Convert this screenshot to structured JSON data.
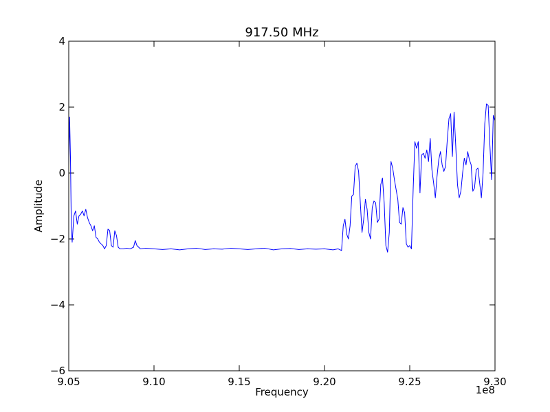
{
  "chart_data": {
    "type": "line",
    "title": "917.50 MHz",
    "xlabel": "Frequency",
    "ylabel": "Amplitude",
    "x_offset_text": "1e8",
    "xlim": [
      9.05,
      9.3
    ],
    "ylim": [
      -6,
      4
    ],
    "x_ticks": [
      9.05,
      9.1,
      9.15,
      9.2,
      9.25,
      9.3
    ],
    "x_tick_labels": [
      "9.05",
      "9.10",
      "9.15",
      "9.20",
      "9.25",
      "9.30"
    ],
    "y_ticks": [
      -6,
      -4,
      -2,
      0,
      2,
      4
    ],
    "y_tick_labels": [
      "−6",
      "−4",
      "−2",
      "0",
      "2",
      "4"
    ],
    "grid": false,
    "series": [
      {
        "color": "#0000ff",
        "points": [
          [
            9.05,
            0.2
          ],
          [
            9.0505,
            1.7
          ],
          [
            9.051,
            0.5
          ],
          [
            9.0515,
            -1.6
          ],
          [
            9.052,
            -2.1
          ],
          [
            9.053,
            -1.3
          ],
          [
            9.054,
            -1.15
          ],
          [
            9.055,
            -1.55
          ],
          [
            9.056,
            -1.3
          ],
          [
            9.057,
            -1.25
          ],
          [
            9.058,
            -1.15
          ],
          [
            9.059,
            -1.3
          ],
          [
            9.06,
            -1.1
          ],
          [
            9.061,
            -1.35
          ],
          [
            9.062,
            -1.5
          ],
          [
            9.063,
            -1.6
          ],
          [
            9.064,
            -1.75
          ],
          [
            9.065,
            -1.6
          ],
          [
            9.066,
            -1.95
          ],
          [
            9.067,
            -2.0
          ],
          [
            9.068,
            -2.1
          ],
          [
            9.069,
            -2.15
          ],
          [
            9.07,
            -2.2
          ],
          [
            9.071,
            -2.3
          ],
          [
            9.072,
            -2.2
          ],
          [
            9.073,
            -1.7
          ],
          [
            9.074,
            -1.75
          ],
          [
            9.075,
            -2.2
          ],
          [
            9.076,
            -2.25
          ],
          [
            9.077,
            -1.75
          ],
          [
            9.078,
            -1.9
          ],
          [
            9.079,
            -2.25
          ],
          [
            9.08,
            -2.3
          ],
          [
            9.082,
            -2.3
          ],
          [
            9.084,
            -2.28
          ],
          [
            9.086,
            -2.3
          ],
          [
            9.088,
            -2.25
          ],
          [
            9.089,
            -2.05
          ],
          [
            9.09,
            -2.2
          ],
          [
            9.092,
            -2.3
          ],
          [
            9.095,
            -2.28
          ],
          [
            9.1,
            -2.3
          ],
          [
            9.105,
            -2.32
          ],
          [
            9.11,
            -2.3
          ],
          [
            9.115,
            -2.33
          ],
          [
            9.12,
            -2.3
          ],
          [
            9.125,
            -2.28
          ],
          [
            9.13,
            -2.32
          ],
          [
            9.135,
            -2.3
          ],
          [
            9.14,
            -2.31
          ],
          [
            9.145,
            -2.28
          ],
          [
            9.15,
            -2.3
          ],
          [
            9.155,
            -2.32
          ],
          [
            9.16,
            -2.3
          ],
          [
            9.165,
            -2.28
          ],
          [
            9.17,
            -2.33
          ],
          [
            9.175,
            -2.3
          ],
          [
            9.18,
            -2.29
          ],
          [
            9.185,
            -2.32
          ],
          [
            9.19,
            -2.3
          ],
          [
            9.195,
            -2.31
          ],
          [
            9.2,
            -2.3
          ],
          [
            9.205,
            -2.33
          ],
          [
            9.208,
            -2.3
          ],
          [
            9.21,
            -2.35
          ],
          [
            9.211,
            -1.6
          ],
          [
            9.212,
            -1.4
          ],
          [
            9.213,
            -1.85
          ],
          [
            9.214,
            -2.0
          ],
          [
            9.215,
            -1.6
          ],
          [
            9.216,
            -0.7
          ],
          [
            9.217,
            -0.65
          ],
          [
            9.218,
            0.2
          ],
          [
            9.219,
            0.3
          ],
          [
            9.22,
            0.05
          ],
          [
            9.221,
            -0.9
          ],
          [
            9.222,
            -1.8
          ],
          [
            9.223,
            -1.4
          ],
          [
            9.224,
            -0.8
          ],
          [
            9.225,
            -1.1
          ],
          [
            9.226,
            -1.8
          ],
          [
            9.227,
            -2.0
          ],
          [
            9.228,
            -1.05
          ],
          [
            9.229,
            -0.85
          ],
          [
            9.23,
            -0.9
          ],
          [
            9.231,
            -1.5
          ],
          [
            9.232,
            -1.4
          ],
          [
            9.233,
            -0.35
          ],
          [
            9.234,
            -0.15
          ],
          [
            9.235,
            -0.9
          ],
          [
            9.236,
            -2.2
          ],
          [
            9.237,
            -2.4
          ],
          [
            9.238,
            -1.8
          ],
          [
            9.239,
            0.35
          ],
          [
            9.24,
            0.15
          ],
          [
            9.241,
            -0.2
          ],
          [
            9.242,
            -0.5
          ],
          [
            9.243,
            -0.8
          ],
          [
            9.244,
            -1.5
          ],
          [
            9.245,
            -1.55
          ],
          [
            9.246,
            -1.05
          ],
          [
            9.247,
            -1.2
          ],
          [
            9.248,
            -2.15
          ],
          [
            9.249,
            -2.25
          ],
          [
            9.25,
            -2.2
          ],
          [
            9.251,
            -2.3
          ],
          [
            9.252,
            -0.5
          ],
          [
            9.253,
            0.95
          ],
          [
            9.254,
            0.75
          ],
          [
            9.255,
            0.95
          ],
          [
            9.256,
            -0.6
          ],
          [
            9.257,
            0.55
          ],
          [
            9.258,
            0.6
          ],
          [
            9.259,
            0.45
          ],
          [
            9.26,
            0.7
          ],
          [
            9.261,
            0.35
          ],
          [
            9.262,
            1.05
          ],
          [
            9.263,
            0.1
          ],
          [
            9.264,
            -0.3
          ],
          [
            9.265,
            -0.75
          ],
          [
            9.266,
            -0.1
          ],
          [
            9.267,
            0.4
          ],
          [
            9.268,
            0.65
          ],
          [
            9.269,
            0.25
          ],
          [
            9.27,
            0.05
          ],
          [
            9.271,
            0.2
          ],
          [
            9.272,
            1.0
          ],
          [
            9.273,
            1.65
          ],
          [
            9.274,
            1.8
          ],
          [
            9.275,
            0.5
          ],
          [
            9.276,
            1.85
          ],
          [
            9.277,
            0.8
          ],
          [
            9.278,
            -0.35
          ],
          [
            9.279,
            -0.75
          ],
          [
            9.28,
            -0.55
          ],
          [
            9.281,
            0.0
          ],
          [
            9.282,
            0.45
          ],
          [
            9.283,
            0.25
          ],
          [
            9.284,
            0.65
          ],
          [
            9.285,
            0.4
          ],
          [
            9.286,
            0.25
          ],
          [
            9.287,
            -0.55
          ],
          [
            9.288,
            -0.45
          ],
          [
            9.289,
            0.1
          ],
          [
            9.29,
            0.15
          ],
          [
            9.291,
            -0.3
          ],
          [
            9.292,
            -0.75
          ],
          [
            9.293,
            0.0
          ],
          [
            9.294,
            1.5
          ],
          [
            9.295,
            2.1
          ],
          [
            9.296,
            2.05
          ],
          [
            9.297,
            0.85
          ],
          [
            9.298,
            -0.2
          ],
          [
            9.299,
            1.75
          ],
          [
            9.2999,
            1.6
          ]
        ]
      }
    ]
  }
}
